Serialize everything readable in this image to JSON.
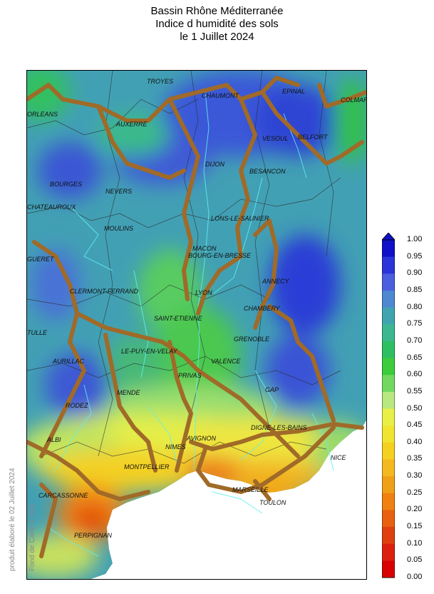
{
  "title": {
    "line1": "Bassin Rhône Méditerranée",
    "line2": "Indice d humidité des sols",
    "line3": "le 1 Juillet 2024"
  },
  "colorbar": {
    "labels": [
      "1.00",
      "0.95",
      "0.90",
      "0.85",
      "0.80",
      "0.75",
      "0.70",
      "0.65",
      "0.60",
      "0.55",
      "0.50",
      "0.45",
      "0.40",
      "0.35",
      "0.30",
      "0.25",
      "0.20",
      "0.15",
      "0.10",
      "0.05",
      "0.00"
    ],
    "colors": [
      "#1010c8",
      "#2a34d8",
      "#4a5ee0",
      "#4d88d0",
      "#40a4b0",
      "#3cb890",
      "#2ec060",
      "#3ccc3c",
      "#72d860",
      "#b8e880",
      "#e8f048",
      "#f0e430",
      "#f4d020",
      "#f4b820",
      "#f0a018",
      "#f08010",
      "#e86010",
      "#e04010",
      "#dc2010",
      "#d80000"
    ]
  },
  "cities": [
    "TROYES",
    "CHAUMONT",
    "EPINAL",
    "COLMAR",
    "ORLEANS",
    "AUXERRE",
    "VESOUL",
    "BELFORT",
    "DIJON",
    "BESANCON",
    "BOURGES",
    "NEVERS",
    "CHATEAUROUX",
    "LONS-LE-SAUNIER",
    "MOULINS",
    "MACON",
    "BOURG-EN-BRESSE",
    "GUERET",
    "ANNECY",
    "CLERMONT-FERRAND",
    "LYON",
    "CHAMBERY",
    "SAINT-ETIENNE",
    "TULLE",
    "GRENOBLE",
    "LE-PUY-EN-VELAY",
    "AURILLAC",
    "VALENCE",
    "PRIVAS",
    "GAP",
    "MENDE",
    "RODEZ",
    "DIGNE-LES-BAINS",
    "ALBI",
    "AVIGNON",
    "NIMES",
    "NICE",
    "MONTPELLIER",
    "CARCASSONNE",
    "MARSEILLE",
    "TOULON",
    "PERPIGNAN"
  ],
  "credits": {
    "produced": "produit élaboré le 02 Juillet 2024",
    "basemap": "Fond de Carte © IGN"
  }
}
